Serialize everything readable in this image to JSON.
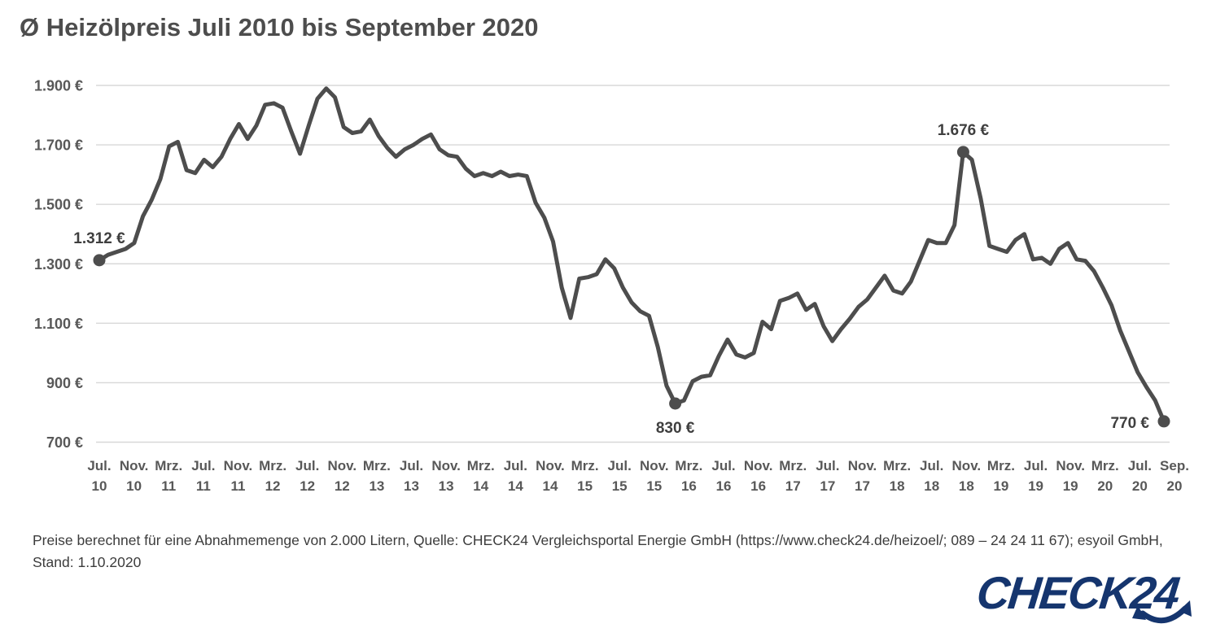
{
  "title": "Ø Heizölpreis Juli 2010 bis September 2020",
  "footer": {
    "line1": "Preise berechnet für eine Abnahmemenge von 2.000 Litern, Quelle: CHECK24 Vergleichsportal Energie GmbH (https://www.check24.de/heizoel/; 089 – 24 24 11 67); esyoil GmbH,",
    "line2": "Stand: 1.10.2020"
  },
  "logo": {
    "text": "CHECK24",
    "color": "#15356e"
  },
  "colors": {
    "line": "#4d4d4d",
    "grid": "#d8d8d8",
    "axis_text": "#585858",
    "annotation_text": "#3f3f3f",
    "title_text": "#4d4d4d"
  },
  "chart_data": {
    "type": "line",
    "title": "Ø Heizölpreis Juli 2010 bis September 2020",
    "series_name": "Heizölpreis je 2.000 Liter",
    "unit": "€",
    "x_range_note": "monatliche Werte Juli 2010 bis September 2020",
    "ylim": [
      700,
      1900
    ],
    "grid": true,
    "y_tick_values": [
      1900,
      1700,
      1500,
      1300,
      1100,
      900,
      700
    ],
    "y_tick_labels": [
      "1.900 €",
      "1.700 €",
      "1.500 €",
      "1.300 €",
      "1.100 €",
      "900 €",
      "700 €"
    ],
    "x_ticks": [
      {
        "month": "Jul.",
        "year": "10"
      },
      {
        "month": "Nov.",
        "year": "10"
      },
      {
        "month": "Mrz.",
        "year": "11"
      },
      {
        "month": "Jul.",
        "year": "11"
      },
      {
        "month": "Nov.",
        "year": "11"
      },
      {
        "month": "Mrz.",
        "year": "12"
      },
      {
        "month": "Jul.",
        "year": "12"
      },
      {
        "month": "Nov.",
        "year": "12"
      },
      {
        "month": "Mrz.",
        "year": "13"
      },
      {
        "month": "Jul.",
        "year": "13"
      },
      {
        "month": "Nov.",
        "year": "13"
      },
      {
        "month": "Mrz.",
        "year": "14"
      },
      {
        "month": "Jul.",
        "year": "14"
      },
      {
        "month": "Nov.",
        "year": "14"
      },
      {
        "month": "Mrz.",
        "year": "15"
      },
      {
        "month": "Jul.",
        "year": "15"
      },
      {
        "month": "Nov.",
        "year": "15"
      },
      {
        "month": "Mrz.",
        "year": "16"
      },
      {
        "month": "Jul.",
        "year": "16"
      },
      {
        "month": "Nov.",
        "year": "16"
      },
      {
        "month": "Mrz.",
        "year": "17"
      },
      {
        "month": "Jul.",
        "year": "17"
      },
      {
        "month": "Nov.",
        "year": "17"
      },
      {
        "month": "Mrz.",
        "year": "18"
      },
      {
        "month": "Jul.",
        "year": "18"
      },
      {
        "month": "Nov.",
        "year": "18"
      },
      {
        "month": "Mrz.",
        "year": "19"
      },
      {
        "month": "Jul.",
        "year": "19"
      },
      {
        "month": "Nov.",
        "year": "19"
      },
      {
        "month": "Mrz.",
        "year": "20"
      },
      {
        "month": "Jul.",
        "year": "20"
      },
      {
        "month": "Sep.",
        "year": "20"
      }
    ],
    "monthly_values": [
      1312,
      1330,
      1340,
      1350,
      1370,
      1460,
      1515,
      1585,
      1695,
      1710,
      1615,
      1605,
      1650,
      1625,
      1660,
      1720,
      1770,
      1720,
      1765,
      1835,
      1840,
      1825,
      1745,
      1670,
      1765,
      1855,
      1890,
      1860,
      1760,
      1740,
      1745,
      1785,
      1730,
      1690,
      1660,
      1685,
      1700,
      1720,
      1735,
      1685,
      1665,
      1660,
      1620,
      1595,
      1605,
      1595,
      1610,
      1595,
      1600,
      1595,
      1505,
      1455,
      1375,
      1220,
      1118,
      1250,
      1255,
      1265,
      1315,
      1285,
      1220,
      1170,
      1140,
      1125,
      1020,
      890,
      830,
      840,
      905,
      920,
      925,
      990,
      1045,
      995,
      985,
      1000,
      1105,
      1080,
      1175,
      1185,
      1200,
      1145,
      1165,
      1090,
      1040,
      1080,
      1115,
      1155,
      1180,
      1220,
      1260,
      1210,
      1200,
      1240,
      1310,
      1380,
      1370,
      1370,
      1430,
      1676,
      1650,
      1520,
      1360,
      1350,
      1340,
      1380,
      1400,
      1315,
      1320,
      1300,
      1350,
      1370,
      1315,
      1310,
      1275,
      1220,
      1160,
      1075,
      1005,
      935,
      885,
      840,
      770
    ],
    "annotations": [
      {
        "label": "1.312 €",
        "month_index": 0,
        "value": 1312,
        "placement": "above"
      },
      {
        "label": "830 €",
        "month_index": 66,
        "value": 830,
        "placement": "below"
      },
      {
        "label": "1.676 €",
        "month_index": 99,
        "value": 1676,
        "placement": "above"
      },
      {
        "label": "770 €",
        "month_index": 122,
        "value": 770,
        "placement": "left"
      }
    ]
  }
}
